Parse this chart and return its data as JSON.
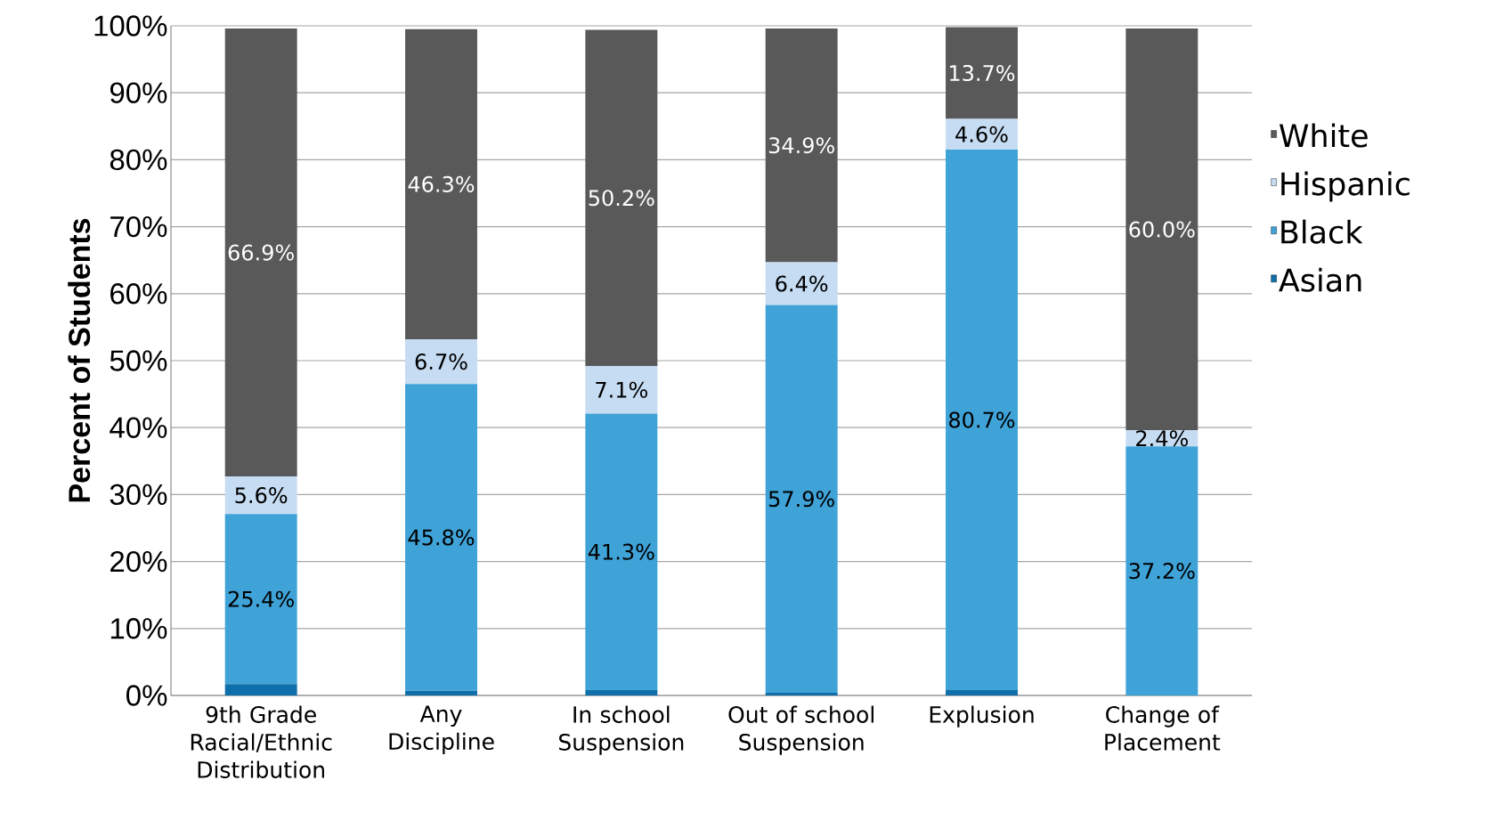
{
  "chart_data": {
    "type": "bar",
    "stacked": true,
    "ylabel": "Percent of Students",
    "categories": [
      "9th Grade Racial/Ethnic Distribution",
      "Any Discipline",
      "In school Suspension",
      "Out of school Suspension",
      "Explusion",
      "Change of Placement"
    ],
    "series": [
      {
        "name": "Asian",
        "color": "#0f6faa",
        "values": [
          1.7,
          0.7,
          0.8,
          0.4,
          0.8,
          0
        ]
      },
      {
        "name": "Black",
        "color": "#3fa3d8",
        "values": [
          25.4,
          45.8,
          41.3,
          57.9,
          80.7,
          37.2
        ],
        "value_labels": [
          "25.4%",
          "45.8%",
          "41.3%",
          "57.9%",
          "80.7%",
          "37.2%"
        ]
      },
      {
        "name": "Hispanic",
        "color": "#c6dcf2",
        "values": [
          5.6,
          6.7,
          7.1,
          6.4,
          4.6,
          2.4
        ],
        "value_labels": [
          "5.6%",
          "6.7%",
          "7.1%",
          "6.4%",
          "4.6%",
          "2.4%"
        ]
      },
      {
        "name": "White",
        "color": "#595959",
        "values": [
          66.9,
          46.3,
          50.2,
          34.9,
          13.7,
          60.0
        ],
        "value_labels": [
          "66.9%",
          "46.3%",
          "50.2%",
          "34.9%",
          "13.7%",
          "60.0%"
        ]
      }
    ],
    "ylim": [
      0,
      100
    ],
    "yticks": [
      {
        "value": 0,
        "label": "0%"
      },
      {
        "value": 10,
        "label": "10%"
      },
      {
        "value": 20,
        "label": "20%"
      },
      {
        "value": 30,
        "label": "30%"
      },
      {
        "value": 40,
        "label": "40%"
      },
      {
        "value": 50,
        "label": "50%"
      },
      {
        "value": 60,
        "label": "60%"
      },
      {
        "value": 70,
        "label": "70%"
      },
      {
        "value": 80,
        "label": "80%"
      },
      {
        "value": 90,
        "label": "90%"
      },
      {
        "value": 100,
        "label": "100%"
      }
    ],
    "grid": "y",
    "legend": "right"
  }
}
